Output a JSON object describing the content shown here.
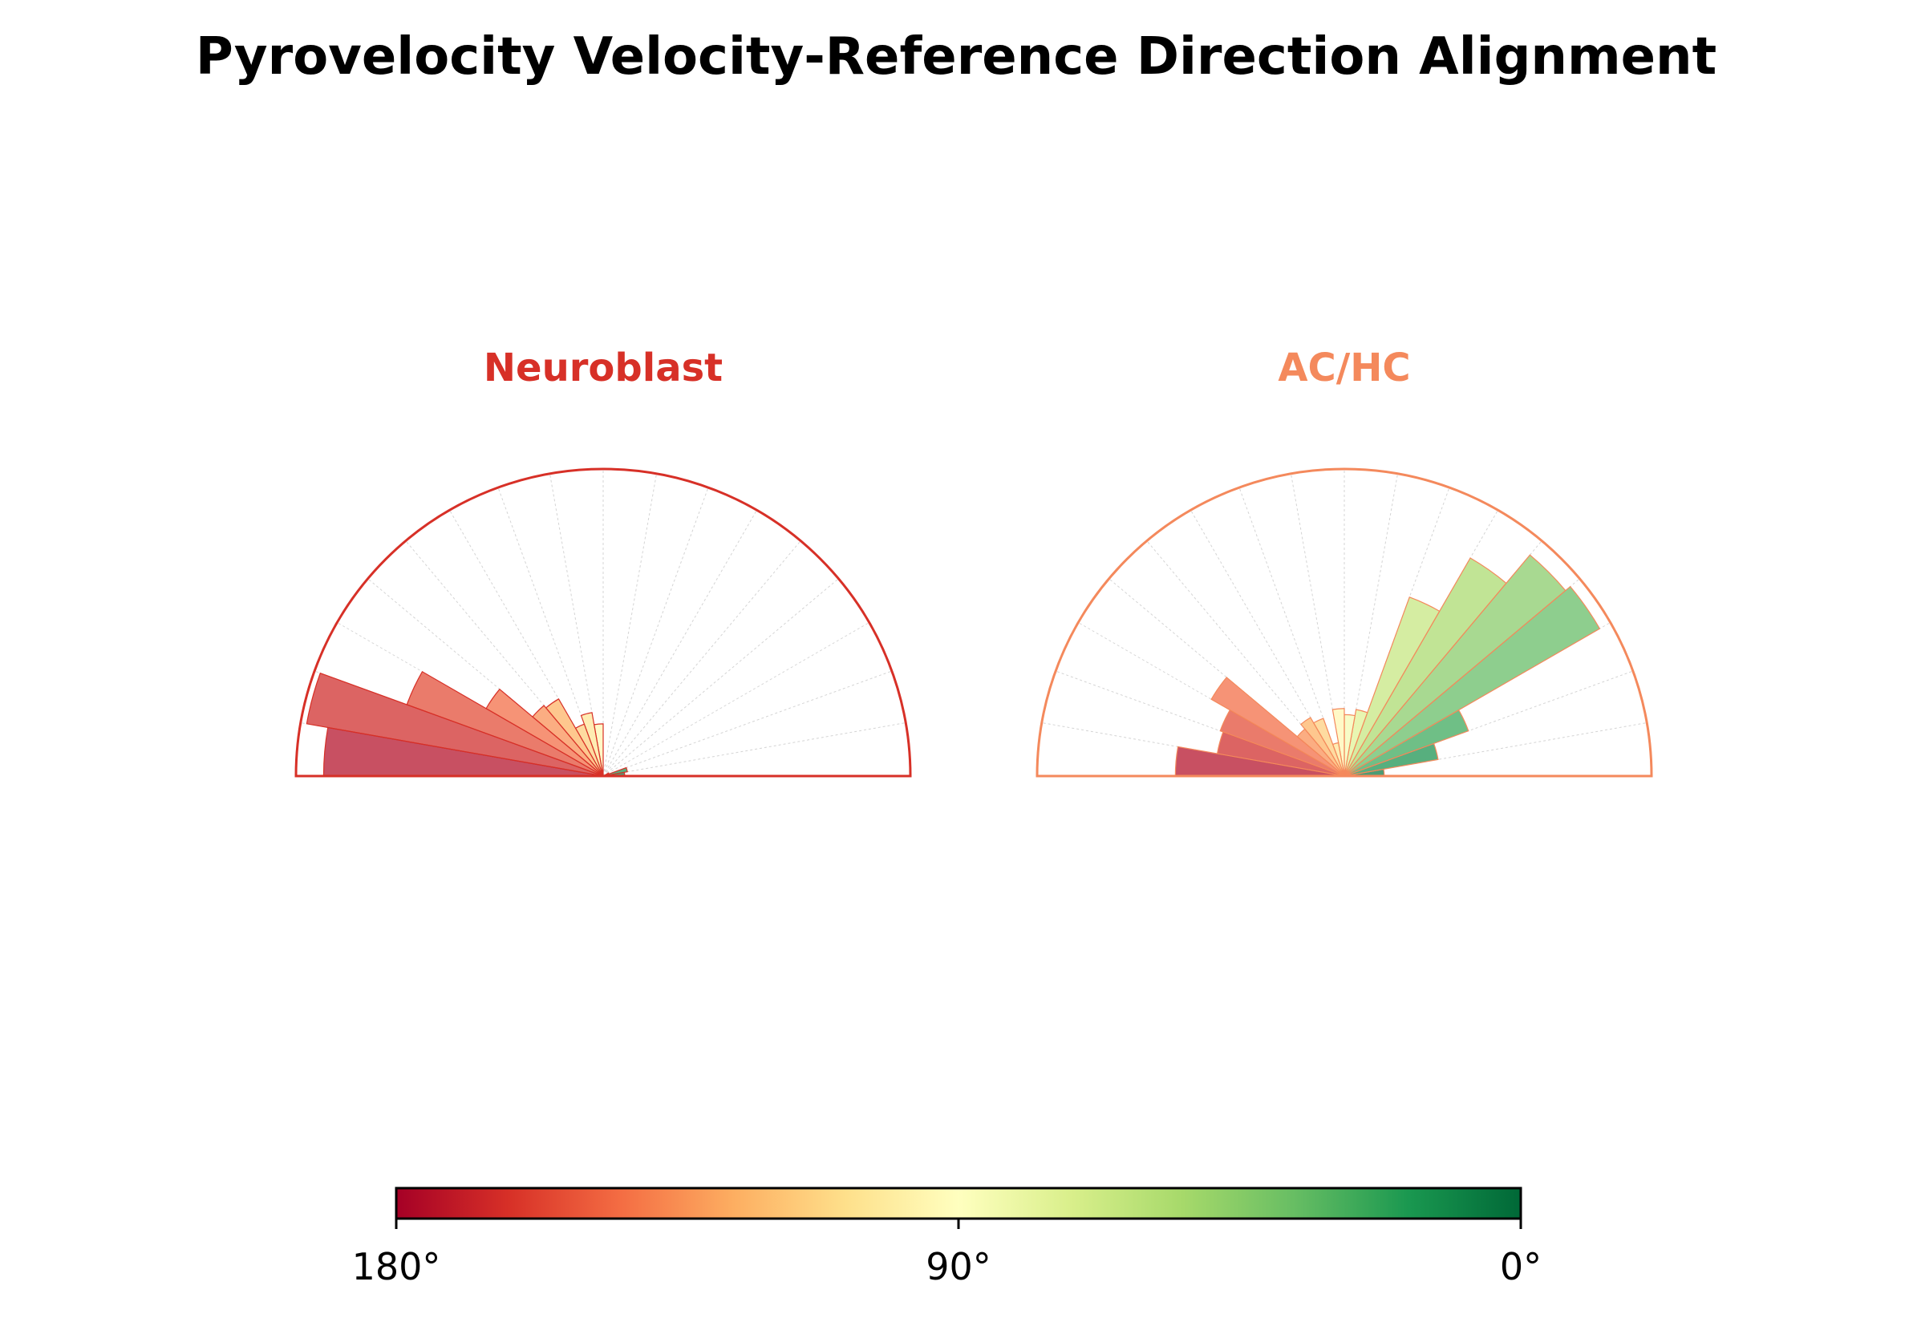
{
  "title": "Pyrovelocity Velocity-Reference Direction Alignment",
  "chart_data": [
    {
      "type": "polar-histogram",
      "title": "Neuroblast",
      "title_color": "#d73027",
      "theta_range_deg": [
        0,
        180
      ],
      "bin_width_deg": 10,
      "bin_centers_deg": [
        5,
        15,
        25,
        35,
        45,
        55,
        65,
        75,
        85,
        95,
        105,
        115,
        125,
        135,
        145,
        155,
        165,
        175
      ],
      "values": [
        0.07,
        0.08,
        0.02,
        0.0,
        0.0,
        0.0,
        0.0,
        0.0,
        0.0,
        0.17,
        0.21,
        0.18,
        0.29,
        0.3,
        0.44,
        0.68,
        0.98,
        0.91
      ],
      "r_max": 1.0
    },
    {
      "type": "polar-histogram",
      "title": "AC/HC",
      "title_color": "#f4895c",
      "theta_range_deg": [
        0,
        180
      ],
      "bin_width_deg": 10,
      "bin_centers_deg": [
        5,
        15,
        25,
        35,
        45,
        55,
        65,
        75,
        85,
        95,
        105,
        115,
        125,
        135,
        145,
        155,
        165,
        175
      ],
      "values": [
        0.13,
        0.31,
        0.43,
        0.96,
        0.94,
        0.82,
        0.62,
        0.22,
        0.2,
        0.22,
        0.11,
        0.2,
        0.22,
        0.2,
        0.5,
        0.43,
        0.42,
        0.55
      ],
      "r_max": 1.0
    }
  ],
  "colorbar": {
    "colormap": "RdYlGn",
    "ticks": [
      "180°",
      "90°",
      "0°"
    ],
    "stops": [
      "#a50026",
      "#d73027",
      "#f46d43",
      "#fdae61",
      "#fee08b",
      "#ffffbf",
      "#d9ef8b",
      "#a6d96a",
      "#66bd63",
      "#1a9850",
      "#006837"
    ]
  }
}
